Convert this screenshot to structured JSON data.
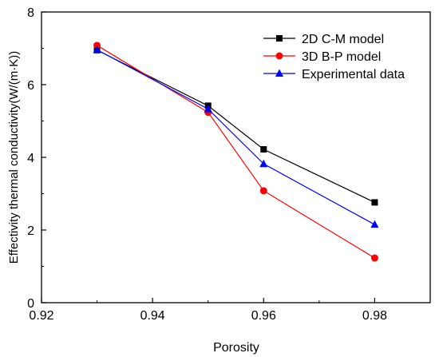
{
  "chart_data": {
    "type": "line",
    "xlabel": "Porosity",
    "ylabel": "Effectivity thermal conductivity(W/(m·K))",
    "xlim": [
      0.92,
      0.99
    ],
    "ylim": [
      0,
      8
    ],
    "xticks": [
      "0.92",
      "0.94",
      "0.96",
      "0.98"
    ],
    "yticks": [
      "0",
      "2",
      "4",
      "6",
      "8"
    ],
    "x": [
      0.93,
      0.95,
      0.96,
      0.98
    ],
    "legend_position": "top-right",
    "grid": false,
    "series": [
      {
        "name": "2D C-M model",
        "values": [
          6.95,
          5.42,
          4.22,
          2.76
        ],
        "color": "#000000",
        "marker": "square"
      },
      {
        "name": "3D B-P model",
        "values": [
          7.08,
          5.24,
          3.08,
          1.23
        ],
        "color": "#ff0000",
        "marker": "circle"
      },
      {
        "name": "Experimental data",
        "values": [
          6.96,
          5.33,
          3.82,
          2.15
        ],
        "color": "#0000ff",
        "marker": "triangle"
      }
    ]
  }
}
